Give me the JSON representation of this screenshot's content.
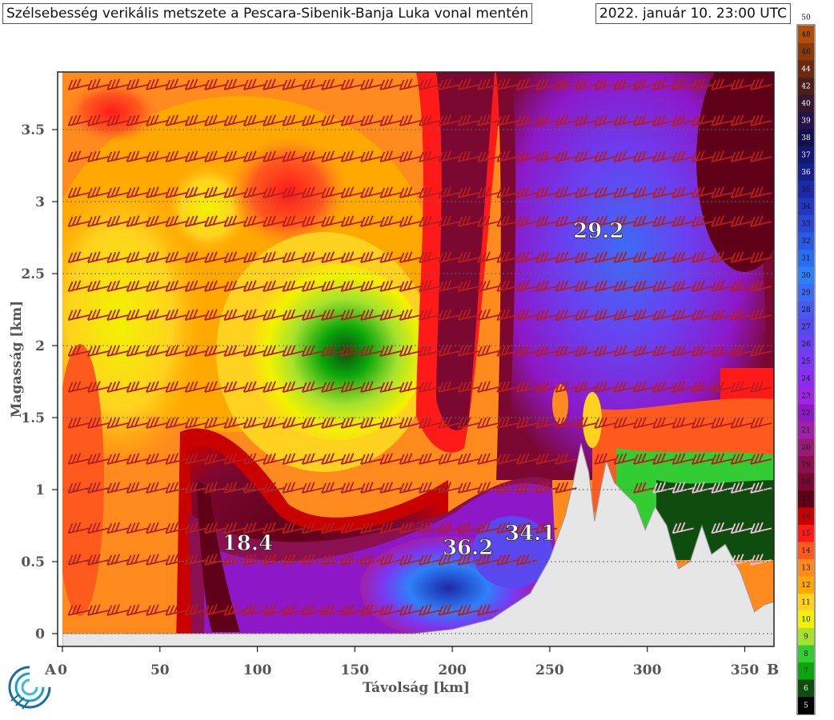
{
  "header": {
    "title": "Szélsebesség verikális metszete a Pescara-Sibenik-Banja Luka vonal mentén",
    "time": "2022. január 10. 23:00 UTC"
  },
  "chart_data": {
    "type": "heatmap",
    "title": "Szélsebesség verikális metszete a Pescara-Sibenik-Banja Luka vonal mentén",
    "xlabel": "Távolság [km]",
    "ylabel": "Magasság [km]",
    "xlim": [
      0,
      365
    ],
    "ylim": [
      0,
      3.9
    ],
    "xticks": [
      0,
      50,
      100,
      150,
      200,
      250,
      300,
      350
    ],
    "yticks": [
      0,
      0.5,
      1,
      1.5,
      2,
      2.5,
      3,
      3.5
    ],
    "endpoints": {
      "start": "A",
      "end": "B"
    },
    "annotations": [
      {
        "x": 95,
        "y": 0.58,
        "label": "18.4"
      },
      {
        "x": 208,
        "y": 0.55,
        "label": "36.2"
      },
      {
        "x": 240,
        "y": 0.65,
        "label": "34.1"
      },
      {
        "x": 275,
        "y": 2.75,
        "label": "29.2"
      }
    ],
    "colorbar": {
      "levels": [
        5,
        6,
        7,
        8,
        9,
        10,
        11,
        12,
        13,
        14,
        15,
        16,
        17,
        18,
        19,
        20,
        21,
        22,
        23,
        24,
        25,
        26,
        27,
        28,
        29,
        30,
        31,
        32,
        33,
        34,
        35,
        36,
        37,
        38,
        39,
        40,
        42,
        44,
        46,
        48,
        50
      ],
      "colors": [
        "#000000",
        "#0e4d0e",
        "#0aa60a",
        "#32cd32",
        "#a6e22e",
        "#f2f200",
        "#ffd21f",
        "#ffa800",
        "#ff8a1e",
        "#ff5a1e",
        "#ff1a1a",
        "#c80000",
        "#600018",
        "#7a0830",
        "#8a1050",
        "#9a1a78",
        "#a020a8",
        "#8e18c8",
        "#a026e6",
        "#8c2cf2",
        "#7a38f2",
        "#6a40f0",
        "#5848ee",
        "#4a5af0",
        "#3c6cf4",
        "#2e80fa",
        "#2a6ef0",
        "#2a5ae4",
        "#2848d4",
        "#2238c0",
        "#1c2aa8",
        "#16208c",
        "#101870",
        "#14104c",
        "#241448",
        "#341830",
        "#4a1e1a",
        "#6a2a10",
        "#8a3a0a",
        "#b05008"
      ]
    },
    "terrain_profile": [
      [
        0,
        0
      ],
      [
        180,
        0
      ],
      [
        200,
        0.03
      ],
      [
        220,
        0.1
      ],
      [
        240,
        0.28
      ],
      [
        250,
        0.52
      ],
      [
        258,
        0.82
      ],
      [
        262,
        1.05
      ],
      [
        266,
        1.32
      ],
      [
        270,
        1.12
      ],
      [
        273,
        0.78
      ],
      [
        276,
        1.0
      ],
      [
        279,
        1.2
      ],
      [
        283,
        1.05
      ],
      [
        288,
        0.98
      ],
      [
        294,
        0.9
      ],
      [
        299,
        0.72
      ],
      [
        304,
        0.88
      ],
      [
        310,
        0.75
      ],
      [
        316,
        0.45
      ],
      [
        322,
        0.5
      ],
      [
        328,
        0.75
      ],
      [
        333,
        0.55
      ],
      [
        340,
        0.62
      ],
      [
        348,
        0.42
      ],
      [
        355,
        0.15
      ],
      [
        360,
        0.2
      ],
      [
        365,
        0.22
      ]
    ],
    "wind_barbs": {
      "direction": "westerly",
      "x_step_km": 10,
      "heights_km": [
        0.15,
        0.5,
        0.72,
        1.0,
        1.2,
        1.45,
        1.7,
        1.95,
        2.2,
        2.4,
        2.6,
        2.85,
        3.05,
        3.3,
        3.55,
        3.8
      ]
    }
  }
}
